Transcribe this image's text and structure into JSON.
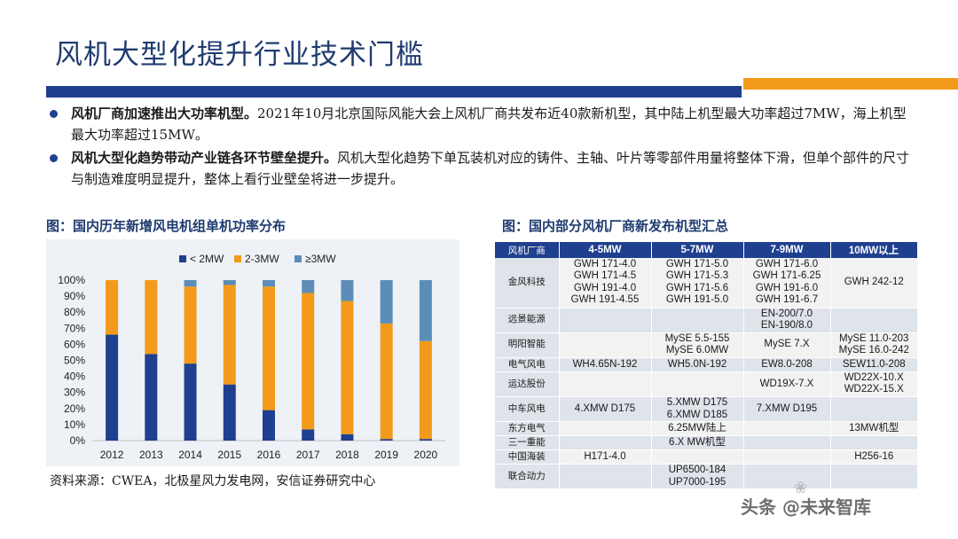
{
  "page": {
    "title": "风机大型化提升行业技术门槛",
    "bullets": [
      {
        "bold": "风机厂商加速推出大功率机型。",
        "text": "2021年10月北京国际风能大会上风机厂商共发布近40款新机型，其中陆上机型最大功率超过7MW，海上机型最大功率超过15MW。"
      },
      {
        "bold": "风机大型化趋势带动产业链各环节壁垒提升。",
        "text": "风机大型化趋势下单瓦装机对应的铸件、主轴、叶片等零部件用量将整体下滑，但单个部件的尺寸与制造难度明显提升，整体上看行业壁垒将进一步提升。"
      }
    ],
    "chart_title": "图：国内历年新增风电机组单机功率分布",
    "table_title": "图：国内部分风机厂商新发布机型汇总",
    "source": "资料来源：CWEA，北极星风力发电网，安信证券研究中心",
    "watermark": "头条 @未来智库"
  },
  "colors": {
    "blue": "#1f3f8f",
    "orange": "#f39a1a",
    "lightblue": "#5b8db8"
  },
  "chart_data": {
    "type": "bar",
    "stacked": true,
    "categories": [
      "2012",
      "2013",
      "2014",
      "2015",
      "2016",
      "2017",
      "2018",
      "2019",
      "2020"
    ],
    "series": [
      {
        "name": "< 2MW",
        "color": "#1f3f8f",
        "values": [
          66,
          54,
          48,
          35,
          19,
          7,
          4,
          1,
          1
        ]
      },
      {
        "name": "2-3MW",
        "color": "#f39a1a",
        "values": [
          34,
          46,
          48,
          62,
          77,
          85,
          83,
          72,
          61
        ]
      },
      {
        "name": "≥3MW",
        "color": "#5b8db8",
        "values": [
          0,
          0,
          4,
          3,
          4,
          8,
          13,
          27,
          38
        ]
      }
    ],
    "ylim": [
      0,
      100
    ],
    "yticks": [
      "0%",
      "10%",
      "20%",
      "30%",
      "40%",
      "50%",
      "60%",
      "70%",
      "80%",
      "90%",
      "100%"
    ],
    "legend_position": "top"
  },
  "table": {
    "headers": [
      "风机厂商",
      "4-5MW",
      "5-7MW",
      "7-9MW",
      "10MW以上"
    ],
    "rows": [
      {
        "maker": "金风科技",
        "c1": "GWH 171-4.0\nGWH 171-4.5\nGWH 191-4.0\nGWH 191-4.55",
        "c2": "GWH 171-5.0\nGWH 171-5.3\nGWH 171-5.6\nGWH 191-5.0",
        "c3": "GWH 171-6.0\nGWH 171-6.25\nGWH 191-6.0\nGWH 191-6.7",
        "c4": "GWH 242-12"
      },
      {
        "maker": "远景能源",
        "c1": "",
        "c2": "",
        "c3": "EN-200/7.0\nEN-190/8.0",
        "c4": ""
      },
      {
        "maker": "明阳智能",
        "c1": "",
        "c2": "MySE 5.5-155\nMySE 6.0MW",
        "c3": "MySE 7.X",
        "c4": "MySE 11.0-203\nMySE 16.0-242"
      },
      {
        "maker": "电气风电",
        "c1": "WH4.65N-192",
        "c2": "WH5.0N-192",
        "c3": "EW8.0-208",
        "c4": "SEW11.0-208"
      },
      {
        "maker": "运达股份",
        "c1": "",
        "c2": "",
        "c3": "WD19X-7.X",
        "c4": "WD22X-10.X\nWD22X-15.X"
      },
      {
        "maker": "中车风电",
        "c1": "4.XMW D175",
        "c2": "5.XMW D175\n6.XMW D185",
        "c3": "7.XMW D195",
        "c4": ""
      },
      {
        "maker": "东方电气",
        "c1": "",
        "c2": "6.25MW陆上",
        "c3": "",
        "c4": "13MW机型"
      },
      {
        "maker": "三一重能",
        "c1": "",
        "c2": "6.X MW机型",
        "c3": "",
        "c4": ""
      },
      {
        "maker": "中国海装",
        "c1": "H171-4.0",
        "c2": "",
        "c3": "",
        "c4": "H256-16"
      },
      {
        "maker": "联合动力",
        "c1": "",
        "c2": "UP6500-184\nUP7000-195",
        "c3": "",
        "c4": ""
      }
    ]
  }
}
